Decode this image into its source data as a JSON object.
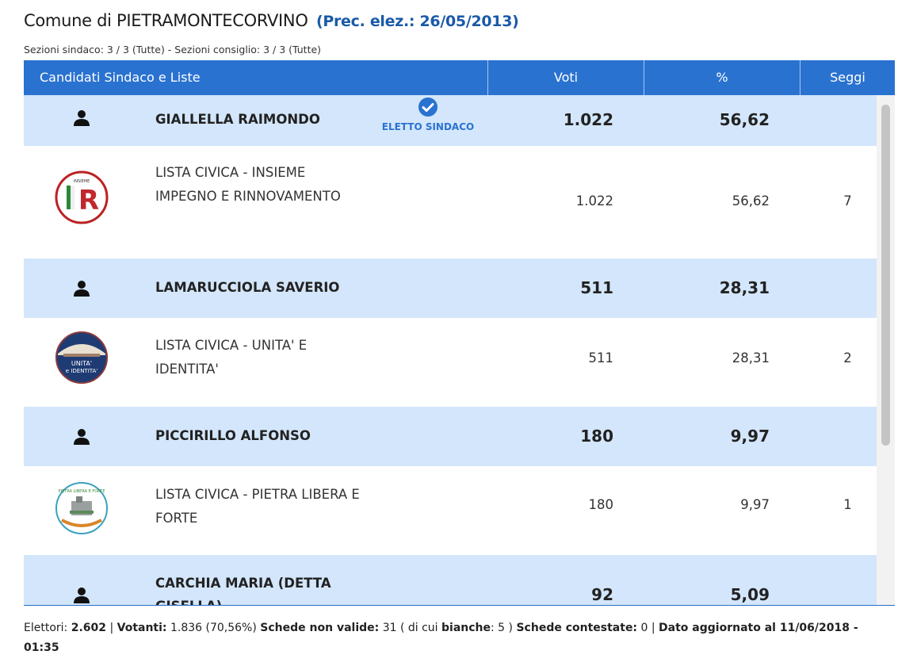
{
  "header": {
    "title_prefix": "Comune di PIETRAMONTECORVINO",
    "prev_election": "(Prec. elez.: 26/05/2013)",
    "sections": "Sezioni sindaco: 3 / 3 (Tutte) - Sezioni consiglio: 3 / 3 (Tutte)"
  },
  "table": {
    "columns": {
      "candidates": "Candidati Sindaco e Liste",
      "votes": "Voti",
      "percent": "%",
      "seats": "Seggi"
    },
    "rows": [
      {
        "candidate": "GIALLELLA RAIMONDO",
        "votes": "1.022",
        "percent": "56,62",
        "badge": "ELETTO SINDACO"
      },
      {
        "list": "LISTA CIVICA - INSIEME IMPEGNO E RINNOVAMENTO",
        "votes": "1.022",
        "percent": "56,62",
        "seats": "7",
        "logo": "insieme-impegno-rinnovamento-logo"
      },
      {
        "candidate": "LAMARUCCIOLA SAVERIO",
        "votes": "511",
        "percent": "28,31"
      },
      {
        "list": "LISTA CIVICA - UNITA' E IDENTITA'",
        "votes": "511",
        "percent": "28,31",
        "seats": "2",
        "logo": "unita-e-identita-logo"
      },
      {
        "candidate": "PICCIRILLO ALFONSO",
        "votes": "180",
        "percent": "9,97"
      },
      {
        "list": "LISTA CIVICA - PIETRA LIBERA E FORTE",
        "votes": "180",
        "percent": "9,97",
        "seats": "1",
        "logo": "pietra-libera-e-forte-logo"
      },
      {
        "candidate": "CARCHIA MARIA (DETTA GISELLA)",
        "votes": "92",
        "percent": "5,09"
      }
    ]
  },
  "footer": {
    "elettori_label": "Elettori:",
    "elettori": "2.602",
    "votanti_label": "Votanti:",
    "votanti": "1.836 (70,56%)",
    "non_valide_label": "Schede non valide:",
    "non_valide": "31 ( di cui",
    "bianche_label": "bianche",
    "bianche": ": 5 )",
    "contestate_label": "Schede contestate:",
    "contestate": "0",
    "updated": "Dato aggiornato al 11/06/2018 - 01:35"
  },
  "icons": {
    "person": "person-icon",
    "check": "check-circle-icon"
  },
  "colors": {
    "header_bg": "#2a72d0",
    "candidate_row_bg": "#d3e6fb",
    "prev_link": "#1a5aa8",
    "badge": "#2a72d0"
  }
}
